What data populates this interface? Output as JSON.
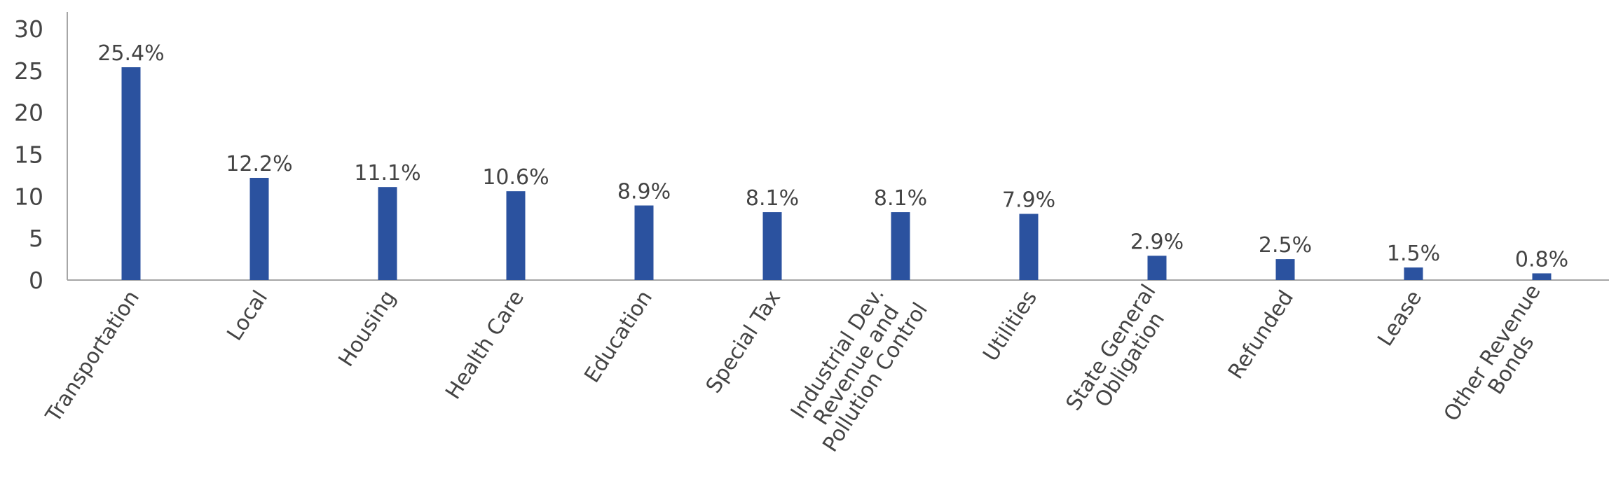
{
  "chart_data": {
    "type": "bar",
    "title": "",
    "xlabel": "",
    "ylabel": "",
    "ylim": [
      0,
      30
    ],
    "yticks": [
      "0",
      "5",
      "10",
      "15",
      "20",
      "25",
      "30"
    ],
    "grid": false,
    "categories": [
      "Transportation",
      "Local",
      "Housing",
      "Health Care",
      "Education",
      "Special Tax",
      "Industrial Dev. Revenue and Pollution Control",
      "Utilities",
      "State General Obligation",
      "Refunded",
      "Lease",
      "Other Revenue Bonds"
    ],
    "category_lines": [
      [
        "Transportation"
      ],
      [
        "Local"
      ],
      [
        "Housing"
      ],
      [
        "Health Care"
      ],
      [
        "Education"
      ],
      [
        "Special Tax"
      ],
      [
        "Industrial Dev.",
        "Revenue and",
        "Pollution Control"
      ],
      [
        "Utilities"
      ],
      [
        "State General",
        "Obligation"
      ],
      [
        "Refunded"
      ],
      [
        "Lease"
      ],
      [
        "Other Revenue",
        "Bonds"
      ]
    ],
    "values": [
      25.4,
      12.2,
      11.1,
      10.6,
      8.9,
      8.1,
      8.1,
      7.9,
      2.9,
      2.5,
      1.5,
      0.8
    ],
    "data_labels": [
      "25.4%",
      "12.2%",
      "11.1%",
      "10.6%",
      "8.9%",
      "8.1%",
      "8.1%",
      "7.9%",
      "2.9%",
      "2.5%",
      "1.5%",
      "0.8%"
    ],
    "bar_color": "#2B529F",
    "axis_color": "#A6A6A6",
    "text_color": "#444444"
  }
}
